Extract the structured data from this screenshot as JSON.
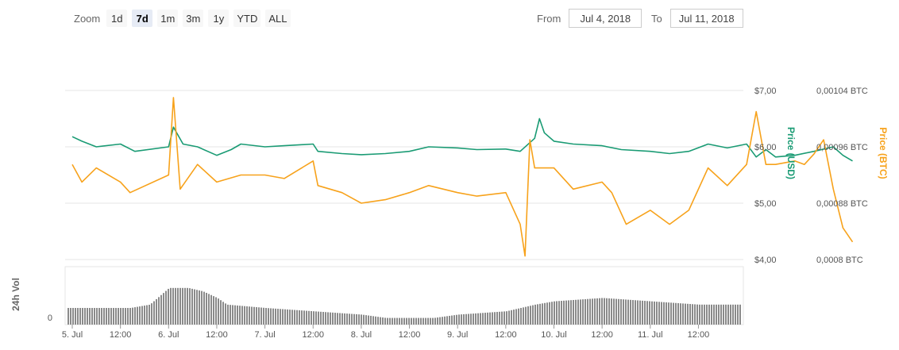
{
  "zoom": {
    "label": "Zoom",
    "buttons": [
      "1d",
      "7d",
      "1m",
      "3m",
      "1y",
      "YTD",
      "ALL"
    ],
    "active": "7d"
  },
  "range": {
    "from_label": "From",
    "from_value": "Jul 4, 2018",
    "to_label": "To",
    "to_value": "Jul 11, 2018"
  },
  "chart_data": {
    "type": "line",
    "x_labels": [
      "5. Jul",
      "12:00",
      "6. Jul",
      "12:00",
      "7. Jul",
      "12:00",
      "8. Jul",
      "12:00",
      "9. Jul",
      "12:00",
      "10. Jul",
      "12:00",
      "11. Jul",
      "12:00"
    ],
    "y_left": {
      "label": "Price (USD)",
      "ticks": [
        "$4,00",
        "$5,00",
        "$6,00",
        "$7,00"
      ],
      "range": [
        4.0,
        7.0
      ]
    },
    "y_right": {
      "label": "Price (BTC)",
      "ticks": [
        "0,0008 BTC",
        "0,00088 BTC",
        "0,00096 BTC",
        "0,00104 BTC"
      ],
      "range": [
        0.0008,
        0.00104
      ]
    },
    "volume_axis": {
      "label": "24h Vol",
      "ticks": [
        "0"
      ]
    },
    "colors": {
      "usd": "#1a9b74",
      "btc": "#f7a21b",
      "volume": "#8a8a8a",
      "grid": "#e6e6e6"
    },
    "series": [
      {
        "axis": "usd",
        "points": [
          [
            0.0,
            6.18
          ],
          [
            0.1,
            6.1
          ],
          [
            0.25,
            6.0
          ],
          [
            0.5,
            6.05
          ],
          [
            0.65,
            5.92
          ],
          [
            1.0,
            6.0
          ],
          [
            1.05,
            6.35
          ],
          [
            1.15,
            6.05
          ],
          [
            1.3,
            6.0
          ],
          [
            1.5,
            5.85
          ],
          [
            1.65,
            5.95
          ],
          [
            1.75,
            6.05
          ],
          [
            2.0,
            6.0
          ],
          [
            2.2,
            6.02
          ],
          [
            2.5,
            6.05
          ],
          [
            2.55,
            5.92
          ],
          [
            2.8,
            5.88
          ],
          [
            3.0,
            5.86
          ],
          [
            3.25,
            5.88
          ],
          [
            3.5,
            5.92
          ],
          [
            3.7,
            6.0
          ],
          [
            4.0,
            5.98
          ],
          [
            4.2,
            5.95
          ],
          [
            4.5,
            5.96
          ],
          [
            4.65,
            5.92
          ],
          [
            4.8,
            6.15
          ],
          [
            4.85,
            6.5
          ],
          [
            4.9,
            6.25
          ],
          [
            5.0,
            6.1
          ],
          [
            5.2,
            6.05
          ],
          [
            5.5,
            6.02
          ],
          [
            5.7,
            5.95
          ],
          [
            6.0,
            5.92
          ],
          [
            6.2,
            5.88
          ],
          [
            6.4,
            5.92
          ],
          [
            6.6,
            6.05
          ],
          [
            6.8,
            5.98
          ],
          [
            7.0,
            6.05
          ],
          [
            7.1,
            5.82
          ],
          [
            7.2,
            5.95
          ],
          [
            7.3,
            5.82
          ],
          [
            7.5,
            5.85
          ],
          [
            7.7,
            5.92
          ],
          [
            7.9,
            6.0
          ],
          [
            8.0,
            5.85
          ],
          [
            8.1,
            5.75
          ]
        ]
      },
      {
        "axis": "btc",
        "points": [
          [
            0.0,
            0.000935
          ],
          [
            0.1,
            0.00091
          ],
          [
            0.25,
            0.00093
          ],
          [
            0.5,
            0.00091
          ],
          [
            0.6,
            0.000895
          ],
          [
            1.0,
            0.00092
          ],
          [
            1.05,
            0.00103
          ],
          [
            1.12,
            0.0009
          ],
          [
            1.3,
            0.000935
          ],
          [
            1.5,
            0.00091
          ],
          [
            1.75,
            0.00092
          ],
          [
            2.0,
            0.00092
          ],
          [
            2.2,
            0.000915
          ],
          [
            2.5,
            0.00094
          ],
          [
            2.55,
            0.000905
          ],
          [
            2.8,
            0.000895
          ],
          [
            3.0,
            0.00088
          ],
          [
            3.25,
            0.000885
          ],
          [
            3.5,
            0.000895
          ],
          [
            3.7,
            0.000905
          ],
          [
            4.0,
            0.000895
          ],
          [
            4.2,
            0.00089
          ],
          [
            4.5,
            0.000895
          ],
          [
            4.65,
            0.00085
          ],
          [
            4.7,
            0.000805
          ],
          [
            4.75,
            0.00097
          ],
          [
            4.8,
            0.00093
          ],
          [
            5.0,
            0.00093
          ],
          [
            5.2,
            0.0009
          ],
          [
            5.5,
            0.00091
          ],
          [
            5.6,
            0.000895
          ],
          [
            5.75,
            0.00085
          ],
          [
            6.0,
            0.00087
          ],
          [
            6.2,
            0.00085
          ],
          [
            6.4,
            0.00087
          ],
          [
            6.6,
            0.00093
          ],
          [
            6.8,
            0.000905
          ],
          [
            7.0,
            0.000935
          ],
          [
            7.1,
            0.00101
          ],
          [
            7.2,
            0.000935
          ],
          [
            7.3,
            0.000935
          ],
          [
            7.5,
            0.00094
          ],
          [
            7.6,
            0.000935
          ],
          [
            7.7,
            0.00095
          ],
          [
            7.8,
            0.00097
          ],
          [
            7.9,
            0.0009
          ],
          [
            8.0,
            0.000845
          ],
          [
            8.1,
            0.000825
          ]
        ]
      },
      {
        "axis": "volume",
        "points": [
          [
            0.0,
            0.25
          ],
          [
            0.3,
            0.25
          ],
          [
            0.6,
            0.25
          ],
          [
            0.8,
            0.3
          ],
          [
            1.0,
            0.55
          ],
          [
            1.2,
            0.55
          ],
          [
            1.35,
            0.5
          ],
          [
            1.5,
            0.4
          ],
          [
            1.6,
            0.3
          ],
          [
            2.0,
            0.25
          ],
          [
            2.5,
            0.2
          ],
          [
            3.0,
            0.15
          ],
          [
            3.25,
            0.1
          ],
          [
            3.5,
            0.1
          ],
          [
            3.75,
            0.1
          ],
          [
            4.0,
            0.15
          ],
          [
            4.5,
            0.2
          ],
          [
            4.8,
            0.3
          ],
          [
            5.0,
            0.35
          ],
          [
            5.5,
            0.4
          ],
          [
            6.0,
            0.35
          ],
          [
            6.5,
            0.3
          ],
          [
            7.0,
            0.3
          ],
          [
            7.25,
            0.3
          ],
          [
            7.5,
            0.3
          ],
          [
            7.75,
            0.35
          ],
          [
            8.0,
            0.4
          ],
          [
            8.25,
            0.4
          ]
        ]
      }
    ]
  }
}
